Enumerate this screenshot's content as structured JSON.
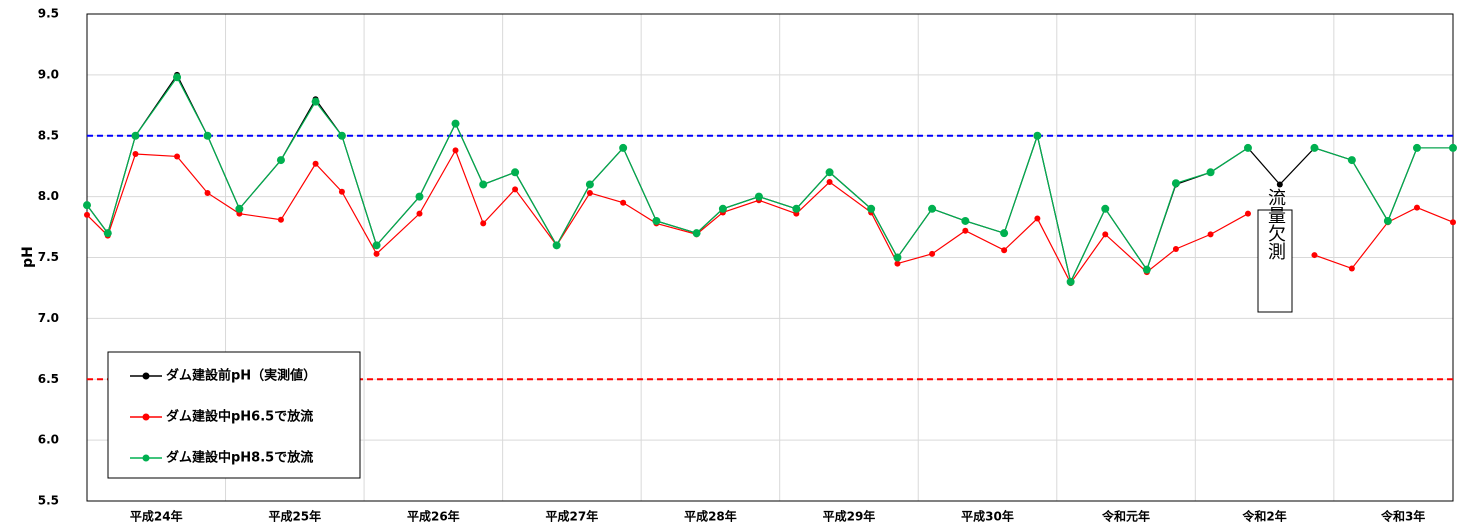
{
  "chart_data": {
    "type": "line",
    "y_label": "pH",
    "xlim": [
      0,
      9.86
    ],
    "xticks": [
      {
        "value": 0.5,
        "label": "平成24年"
      },
      {
        "value": 1.5,
        "label": "平成25年"
      },
      {
        "value": 2.5,
        "label": "平成26年"
      },
      {
        "value": 3.5,
        "label": "平成27年"
      },
      {
        "value": 4.5,
        "label": "平成28年"
      },
      {
        "value": 5.5,
        "label": "平成29年"
      },
      {
        "value": 6.5,
        "label": "平成30年"
      },
      {
        "value": 7.5,
        "label": "令和元年"
      },
      {
        "value": 8.5,
        "label": "令和2年"
      },
      {
        "value": 9.5,
        "label": "令和3年"
      }
    ],
    "ylim": [
      5.5,
      9.5
    ],
    "yticks": [
      5.5,
      {
        "value": 6,
        "label": "6.0"
      },
      6.5,
      {
        "value": 7,
        "label": "7.0"
      },
      7.5,
      {
        "value": 8,
        "label": "8.0"
      },
      8.5,
      {
        "value": 9,
        "label": "9.0"
      },
      9.5
    ],
    "grid": true,
    "x": [
      0,
      0.15,
      0.35,
      0.65,
      0.87,
      1.1,
      1.4,
      1.65,
      1.84,
      2.09,
      2.4,
      2.66,
      2.86,
      3.09,
      3.39,
      3.63,
      3.87,
      4.11,
      4.4,
      4.59,
      4.85,
      5.12,
      5.36,
      5.66,
      5.85,
      6.1,
      6.34,
      6.62,
      6.86,
      7.1,
      7.35,
      7.65,
      7.86,
      8.11,
      8.38,
      8.61,
      8.86,
      9.13,
      9.39,
      9.6,
      9.86
    ],
    "series": [
      {
        "name": "ダム建設前pH（実測値）",
        "color": "#000000",
        "values": [
          7.93,
          7.7,
          8.5,
          9.0,
          8.5,
          7.9,
          8.3,
          8.8,
          8.5,
          7.6,
          8.0,
          8.6,
          8.1,
          8.2,
          7.6,
          8.1,
          8.4,
          7.8,
          7.7,
          7.9,
          8.0,
          7.9,
          8.2,
          7.9,
          7.5,
          7.9,
          7.8,
          7.7,
          8.5,
          7.3,
          7.9,
          7.4,
          8.1,
          8.2,
          8.4,
          8.1,
          8.4,
          8.3,
          7.8,
          8.4,
          8.4
        ]
      },
      {
        "name": "ダム建設中pH6.5で放流",
        "color": "#ff0000",
        "values": [
          7.85,
          7.68,
          8.35,
          8.33,
          8.03,
          7.86,
          7.81,
          8.27,
          8.04,
          7.53,
          7.86,
          8.38,
          7.78,
          8.06,
          7.6,
          8.03,
          7.95,
          7.78,
          7.69,
          7.87,
          7.97,
          7.86,
          8.12,
          7.87,
          7.45,
          7.53,
          7.72,
          7.56,
          7.82,
          7.29,
          7.69,
          7.38,
          7.57,
          7.69,
          7.86,
          null,
          7.52,
          7.41,
          7.79,
          7.91,
          7.79
        ]
      },
      {
        "name": "ダム建設中pH8.5で放流",
        "color": "#00b050",
        "values": [
          7.93,
          7.7,
          8.5,
          8.98,
          8.5,
          7.9,
          8.3,
          8.78,
          8.5,
          7.6,
          8.0,
          8.6,
          8.1,
          8.2,
          7.6,
          8.1,
          8.4,
          7.8,
          7.7,
          7.9,
          8.0,
          7.9,
          8.2,
          7.9,
          7.5,
          7.9,
          7.8,
          7.7,
          8.5,
          7.3,
          7.9,
          7.4,
          8.11,
          8.2,
          8.4,
          null,
          8.4,
          8.3,
          7.8,
          8.4,
          8.4
        ]
      }
    ],
    "reference_lines": [
      {
        "value": 8.5,
        "color": "#0000ff"
      },
      {
        "value": 6.5,
        "color": "#ff0000"
      }
    ],
    "annotation": "流量欠測"
  }
}
